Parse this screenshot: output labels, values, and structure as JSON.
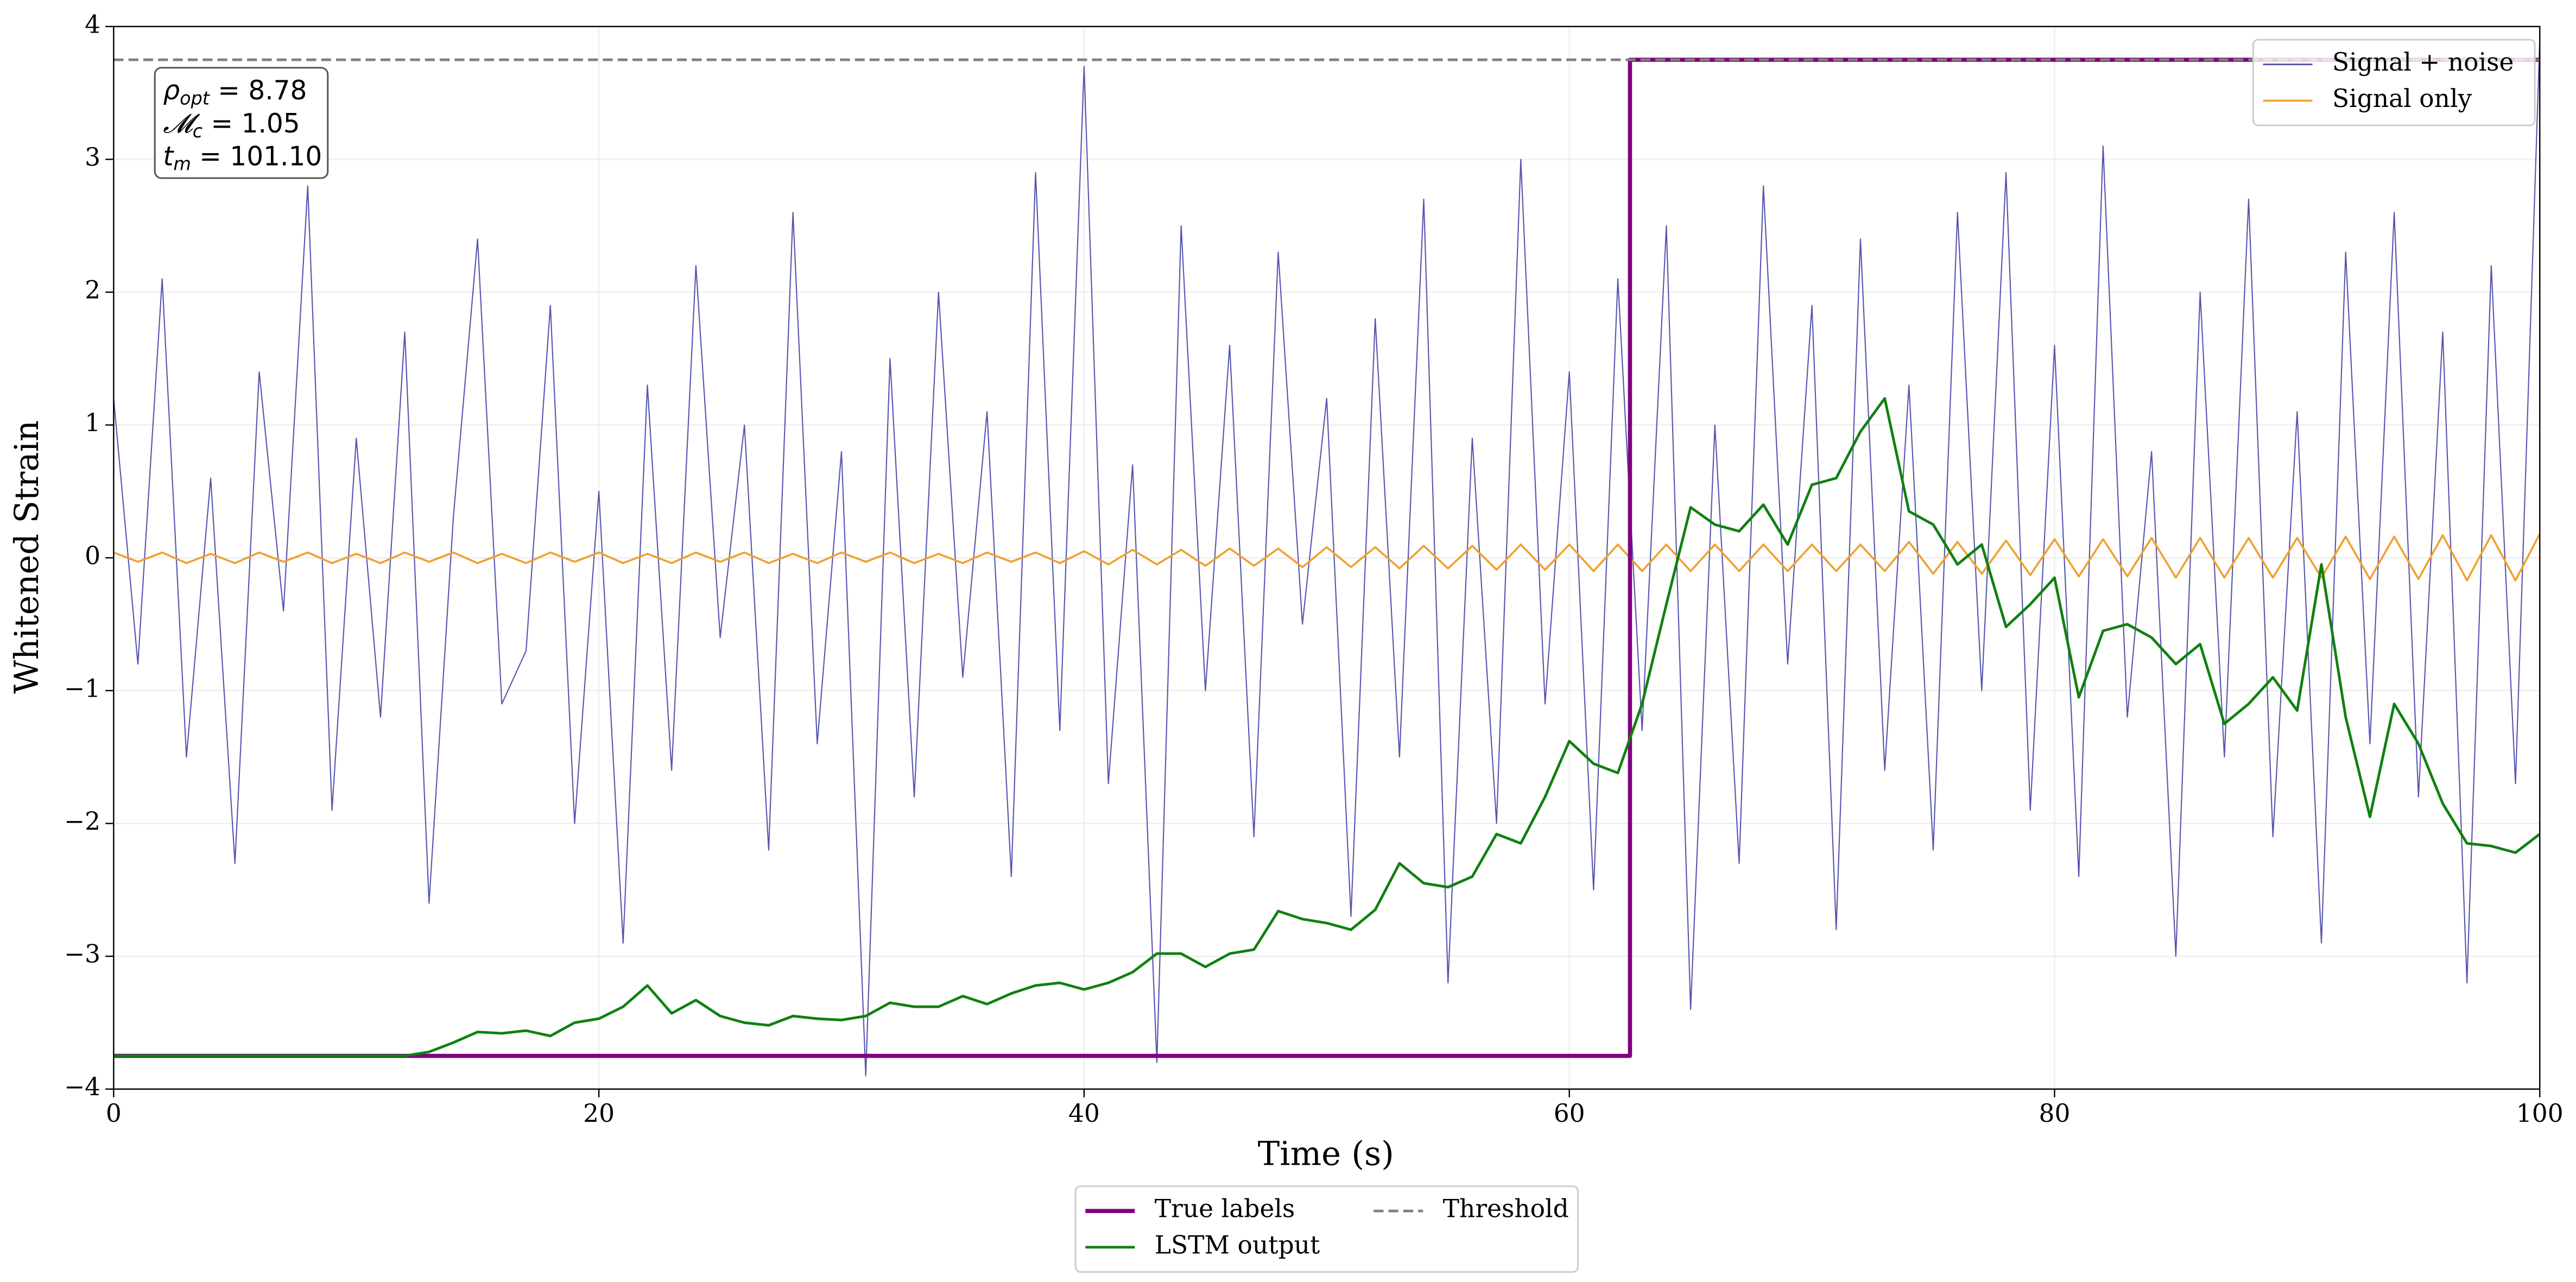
{
  "chart_data": {
    "type": "line",
    "xlabel": "Time (s)",
    "ylabel": "Whitened Strain",
    "xlim": [
      0,
      100
    ],
    "ylim": [
      -4,
      4
    ],
    "xticks": [
      0,
      20,
      40,
      60,
      80,
      100
    ],
    "yticks": [
      {
        "value": -4,
        "label": "−4"
      },
      {
        "value": -3,
        "label": "−3"
      },
      {
        "value": -2,
        "label": "−2"
      },
      {
        "value": -1,
        "label": "−1"
      },
      0,
      1,
      2,
      3,
      4
    ],
    "grid": true,
    "x": [
      0,
      1,
      2,
      3,
      4,
      5,
      6,
      7,
      8,
      9,
      10,
      11,
      12,
      13,
      14,
      15,
      16,
      17,
      18,
      19,
      20,
      21,
      22,
      23,
      24,
      25,
      26,
      27,
      28,
      29,
      30,
      31,
      32,
      33,
      34,
      35,
      36,
      37,
      38,
      39,
      40,
      41,
      42,
      43,
      44,
      45,
      46,
      47,
      48,
      49,
      50,
      51,
      52,
      53,
      54,
      55,
      56,
      57,
      58,
      59,
      60,
      61,
      62,
      63,
      64,
      65,
      66,
      67,
      68,
      69,
      70,
      71,
      72,
      73,
      74,
      75,
      76,
      77,
      78,
      79,
      80,
      81,
      82,
      83,
      84,
      85,
      86,
      87,
      88,
      89,
      90,
      91,
      92,
      93,
      94,
      95,
      96,
      97,
      98,
      99,
      100
    ],
    "series": [
      {
        "name": "Signal + noise",
        "color": "#5555b0",
        "linewidth": 0.7,
        "legend": "upper right",
        "values": [
          1.2,
          -0.8,
          2.1,
          -1.5,
          0.6,
          -2.3,
          1.4,
          -0.4,
          2.8,
          -1.9,
          0.9,
          -1.2,
          1.7,
          -2.6,
          0.3,
          2.4,
          -1.1,
          -0.7,
          1.9,
          -2.0,
          0.5,
          -2.9,
          1.3,
          -1.6,
          2.2,
          -0.6,
          1.0,
          -2.2,
          2.6,
          -1.4,
          0.8,
          -3.9,
          1.5,
          -1.8,
          2.0,
          -0.9,
          1.1,
          -2.4,
          2.9,
          -1.3,
          3.7,
          -1.7,
          0.7,
          -3.8,
          2.5,
          -1.0,
          1.6,
          -2.1,
          2.3,
          -0.5,
          1.2,
          -2.7,
          1.8,
          -1.5,
          2.7,
          -3.2,
          0.9,
          -2.0,
          3.0,
          -1.1,
          1.4,
          -2.5,
          2.1,
          -1.3,
          2.5,
          -3.4,
          1.0,
          -2.3,
          2.8,
          -0.8,
          1.9,
          -2.8,
          2.4,
          -1.6,
          1.3,
          -2.2,
          2.6,
          -1.0,
          2.9,
          -1.9,
          1.6,
          -2.4,
          3.1,
          -1.2,
          0.8,
          -3.0,
          2.0,
          -1.5,
          2.7,
          -2.1,
          1.1,
          -2.9,
          2.3,
          -1.4,
          2.6,
          -1.8,
          1.7,
          -3.2,
          2.2,
          -1.7,
          3.9
        ]
      },
      {
        "name": "Signal only",
        "color": "#f0a030",
        "linewidth": 1.2,
        "legend": "upper right",
        "values": [
          0.04,
          -0.03,
          0.04,
          -0.04,
          0.03,
          -0.04,
          0.04,
          -0.03,
          0.04,
          -0.04,
          0.03,
          -0.04,
          0.04,
          -0.03,
          0.04,
          -0.04,
          0.03,
          -0.04,
          0.04,
          -0.03,
          0.04,
          -0.04,
          0.03,
          -0.04,
          0.04,
          -0.03,
          0.04,
          -0.04,
          0.03,
          -0.04,
          0.04,
          -0.03,
          0.04,
          -0.04,
          0.03,
          -0.04,
          0.04,
          -0.03,
          0.04,
          -0.04,
          0.05,
          -0.05,
          0.06,
          -0.05,
          0.06,
          -0.06,
          0.07,
          -0.06,
          0.07,
          -0.07,
          0.08,
          -0.07,
          0.08,
          -0.08,
          0.09,
          -0.08,
          0.09,
          -0.09,
          0.1,
          -0.09,
          0.1,
          -0.1,
          0.1,
          -0.1,
          0.1,
          -0.1,
          0.1,
          -0.1,
          0.1,
          -0.1,
          0.1,
          -0.1,
          0.1,
          -0.1,
          0.12,
          -0.12,
          0.12,
          -0.12,
          0.13,
          -0.13,
          0.14,
          -0.14,
          0.14,
          -0.14,
          0.15,
          -0.15,
          0.15,
          -0.15,
          0.15,
          -0.15,
          0.15,
          -0.15,
          0.16,
          -0.16,
          0.16,
          -0.16,
          0.17,
          -0.17,
          0.17,
          -0.17,
          0.18
        ]
      },
      {
        "name": "True labels",
        "color": "#800080",
        "linewidth": 2.5,
        "legend": "lower center",
        "x": [
          0,
          62.5,
          62.5,
          100
        ],
        "values": [
          -3.75,
          -3.75,
          3.75,
          3.75
        ]
      },
      {
        "name": "LSTM output",
        "color": "#108010",
        "linewidth": 1.6,
        "legend": "lower center",
        "values": [
          -3.75,
          -3.75,
          -3.75,
          -3.75,
          -3.75,
          -3.75,
          -3.75,
          -3.75,
          -3.75,
          -3.75,
          -3.75,
          -3.75,
          -3.75,
          -3.72,
          -3.65,
          -3.57,
          -3.58,
          -3.56,
          -3.6,
          -3.5,
          -3.47,
          -3.38,
          -3.22,
          -3.43,
          -3.33,
          -3.45,
          -3.5,
          -3.52,
          -3.45,
          -3.47,
          -3.48,
          -3.45,
          -3.35,
          -3.38,
          -3.38,
          -3.3,
          -3.36,
          -3.28,
          -3.22,
          -3.2,
          -3.25,
          -3.2,
          -3.12,
          -2.98,
          -2.98,
          -3.08,
          -2.98,
          -2.95,
          -2.66,
          -2.72,
          -2.75,
          -2.8,
          -2.65,
          -2.3,
          -2.45,
          -2.48,
          -2.4,
          -2.08,
          -2.15,
          -1.8,
          -1.38,
          -1.55,
          -1.62,
          -1.1,
          -0.35,
          0.38,
          0.25,
          0.2,
          0.4,
          0.1,
          0.55,
          0.6,
          0.95,
          1.2,
          0.35,
          0.25,
          -0.05,
          0.1,
          -0.52,
          -0.35,
          -0.15,
          -1.05,
          -0.55,
          -0.5,
          -0.6,
          -0.8,
          -0.65,
          -1.25,
          -1.1,
          -0.9,
          -1.15,
          -0.05,
          -1.2,
          -1.95,
          -1.1,
          -1.4,
          -1.85,
          -2.15,
          -2.17,
          -2.22,
          -2.08
        ]
      },
      {
        "name": "Threshold",
        "color": "#808080",
        "linewidth": 1.6,
        "linestyle": "dashed",
        "legend": "lower center",
        "x": [
          0,
          100
        ],
        "values": [
          3.75,
          3.75
        ]
      }
    ],
    "annotation": [
      {
        "symbol": "ρ",
        "sub": "opt",
        "text": " = 8.78"
      },
      {
        "symbol": "𝓜",
        "sub": "c",
        "text": " = 1.05"
      },
      {
        "symbol": "t",
        "sub": "m",
        "text": " = 101.10"
      }
    ]
  }
}
